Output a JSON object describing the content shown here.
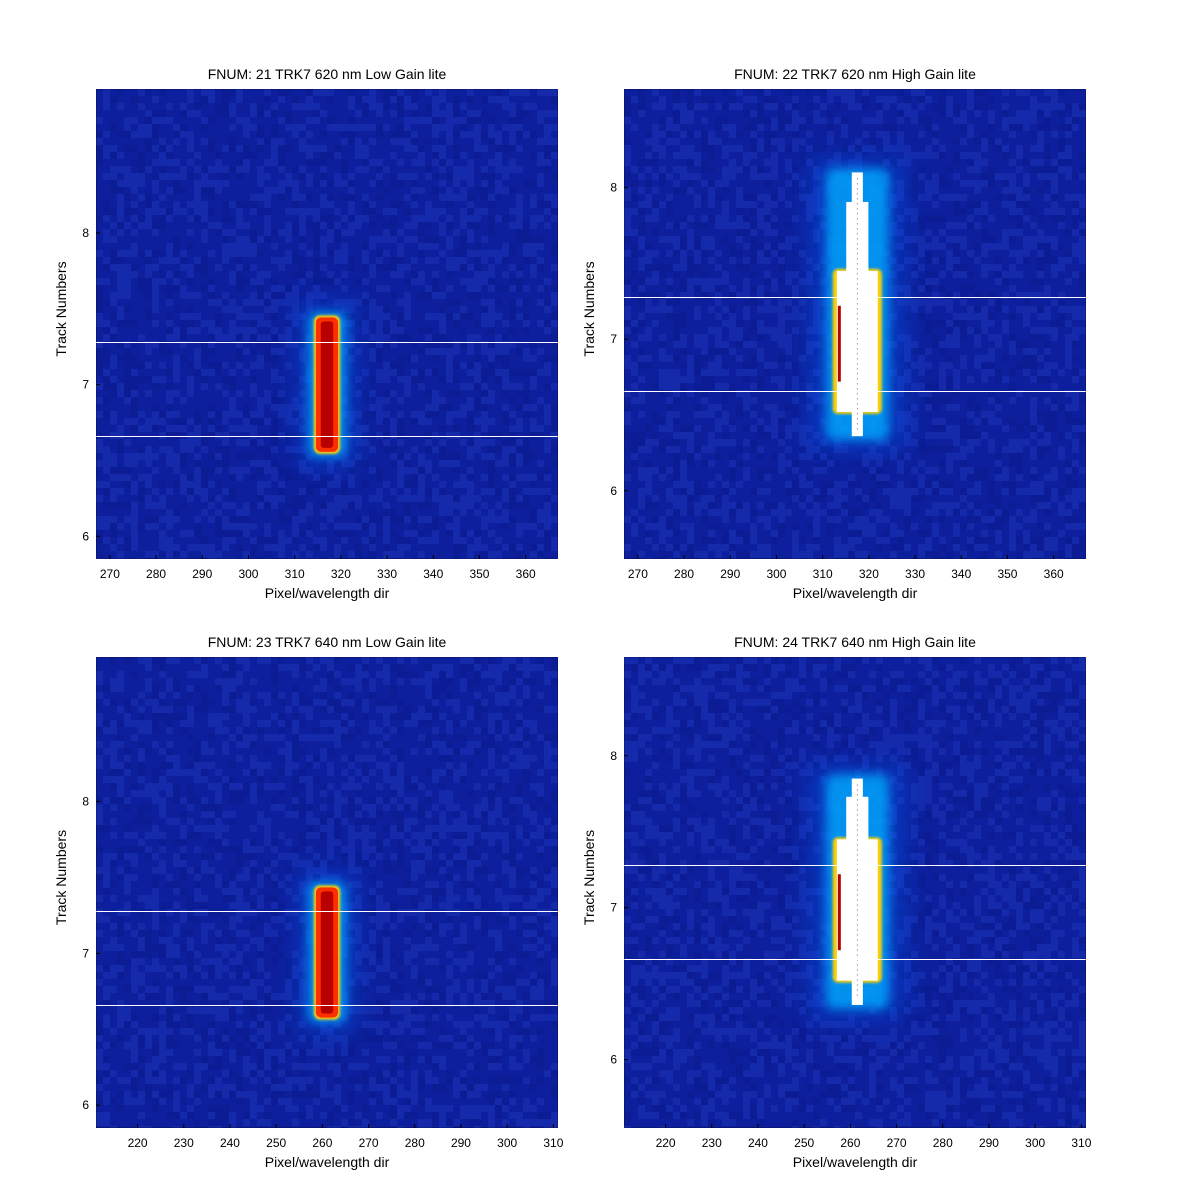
{
  "chart_data": [
    {
      "type": "heatmap",
      "title": "FNUM: 21 TRK7 620 nm Low Gain lite",
      "xlabel": "Pixel/wavelength dir",
      "ylabel": "Track Numbers",
      "xlim": [
        267,
        367
      ],
      "ylim": [
        5.85,
        8.95
      ],
      "xticks": [
        270,
        280,
        290,
        300,
        310,
        320,
        330,
        340,
        350,
        360
      ],
      "yticks": [
        6,
        7,
        8
      ],
      "hlines": [
        6.66,
        7.28
      ],
      "spot": {
        "x_center": 317,
        "half_width": 2.4,
        "y_min": 6.55,
        "y_max": 7.45,
        "saturated": false
      }
    },
    {
      "type": "heatmap",
      "title": "FNUM: 22 TRK7 620 nm High Gain lite",
      "xlabel": "Pixel/wavelength dir",
      "ylabel": "Track Numbers",
      "xlim": [
        267,
        367
      ],
      "ylim": [
        5.55,
        8.65
      ],
      "xticks": [
        270,
        280,
        290,
        300,
        310,
        320,
        330,
        340,
        350,
        360
      ],
      "yticks": [
        6,
        7,
        8
      ],
      "hlines": [
        6.66,
        7.28
      ],
      "spot": {
        "x_center": 317.5,
        "half_width": 4.0,
        "y_min": 6.36,
        "y_max": 8.1,
        "saturated": true
      }
    },
    {
      "type": "heatmap",
      "title": "FNUM: 23 TRK7 640 nm Low Gain lite",
      "xlabel": "Pixel/wavelength dir",
      "ylabel": "Track Numbers",
      "xlim": [
        211,
        311
      ],
      "ylim": [
        5.85,
        8.95
      ],
      "xticks": [
        220,
        230,
        240,
        250,
        260,
        270,
        280,
        290,
        300,
        310
      ],
      "yticks": [
        6,
        7,
        8
      ],
      "hlines": [
        6.66,
        7.28
      ],
      "spot": {
        "x_center": 261,
        "half_width": 2.4,
        "y_min": 6.57,
        "y_max": 7.44,
        "saturated": false
      }
    },
    {
      "type": "heatmap",
      "title": "FNUM: 24 TRK7 640 nm High Gain lite",
      "xlabel": "Pixel/wavelength dir",
      "ylabel": "Track Numbers",
      "xlim": [
        211,
        311
      ],
      "ylim": [
        5.55,
        8.65
      ],
      "xticks": [
        220,
        230,
        240,
        250,
        260,
        270,
        280,
        290,
        300,
        310
      ],
      "yticks": [
        6,
        7,
        8
      ],
      "hlines": [
        6.66,
        7.28
      ],
      "spot": {
        "x_center": 261.5,
        "half_width": 4.0,
        "y_min": 6.36,
        "y_max": 7.85,
        "saturated": true
      }
    }
  ],
  "colors": {
    "background": "#0d1f9c",
    "noise_dark": "#0a1a8f",
    "noise_light": "#1a34b8",
    "glow_inner": "#00b0ff",
    "glow_outer": "#0066ff",
    "spot_core": "#b80000",
    "spot_mid": "#ff3000",
    "spot_edge": "#ffd000",
    "saturated": "#ffffff",
    "hline": "#ffffff"
  }
}
